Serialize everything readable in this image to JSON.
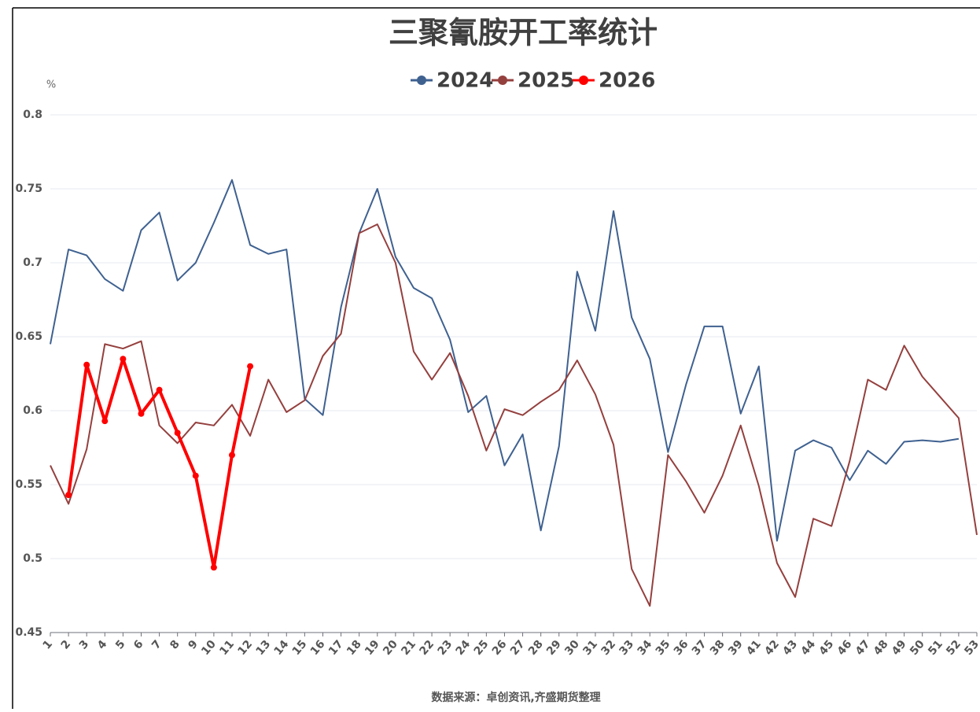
{
  "chart_data": {
    "type": "line",
    "title": "三聚氰胺开工率统计",
    "y_label": "%",
    "source": "数据来源：卓创资讯,齐盛期货整理",
    "categories": [
      "1",
      "2",
      "3",
      "4",
      "5",
      "6",
      "7",
      "8",
      "9",
      "10",
      "11",
      "12",
      "13",
      "14",
      "15",
      "16",
      "17",
      "18",
      "19",
      "20",
      "21",
      "22",
      "23",
      "24",
      "25",
      "26",
      "27",
      "28",
      "29",
      "30",
      "31",
      "32",
      "33",
      "34",
      "35",
      "36",
      "37",
      "38",
      "39",
      "41",
      "42",
      "43",
      "44",
      "45",
      "46",
      "47",
      "48",
      "49",
      "50",
      "51",
      "52",
      "53"
    ],
    "series": [
      {
        "name": "2024",
        "color": "#3f6190",
        "markers": false,
        "values": [
          0.645,
          0.709,
          0.705,
          0.689,
          0.681,
          0.722,
          0.734,
          0.688,
          0.7,
          0.727,
          0.756,
          0.712,
          0.706,
          0.709,
          0.608,
          0.597,
          0.67,
          0.72,
          0.75,
          0.704,
          0.683,
          0.676,
          0.648,
          0.599,
          0.61,
          0.563,
          0.584,
          0.519,
          0.576,
          0.694,
          0.654,
          0.735,
          0.663,
          0.635,
          0.572,
          0.618,
          0.657,
          0.657,
          0.598,
          0.63,
          0.512,
          0.573,
          0.58,
          0.575,
          0.553,
          0.573,
          0.564,
          0.579,
          0.58,
          0.579,
          0.581,
          null
        ]
      },
      {
        "name": "2025",
        "color": "#94403e",
        "markers": false,
        "values": [
          0.563,
          0.537,
          0.574,
          0.645,
          0.642,
          0.647,
          0.59,
          0.578,
          0.592,
          0.59,
          0.604,
          0.583,
          0.621,
          0.599,
          0.607,
          0.637,
          0.652,
          0.72,
          0.726,
          0.7,
          0.64,
          0.621,
          0.639,
          0.61,
          0.573,
          0.601,
          0.597,
          0.606,
          0.614,
          0.634,
          0.611,
          0.577,
          0.493,
          0.468,
          0.57,
          0.552,
          0.531,
          0.556,
          0.59,
          0.549,
          0.497,
          0.474,
          0.527,
          0.522,
          0.566,
          0.621,
          0.614,
          0.644,
          0.623,
          0.609,
          0.595,
          0.516
        ]
      },
      {
        "name": "2026",
        "color": "#ff0000",
        "markers": true,
        "values": [
          null,
          0.543,
          0.631,
          0.593,
          0.635,
          0.598,
          0.614,
          0.585,
          0.556,
          0.494,
          0.57,
          0.63,
          null,
          null,
          null,
          null,
          null,
          null,
          null,
          null,
          null,
          null,
          null,
          null,
          null,
          null,
          null,
          null,
          null,
          null,
          null,
          null,
          null,
          null,
          null,
          null,
          null,
          null,
          null,
          null,
          null,
          null,
          null,
          null,
          null,
          null,
          null,
          null,
          null,
          null,
          null,
          null
        ]
      }
    ],
    "ylim": [
      0.45,
      0.8
    ],
    "yticks": [
      0.45,
      0.5,
      0.55,
      0.6,
      0.65,
      0.7,
      0.75,
      0.8
    ],
    "grid": true
  }
}
